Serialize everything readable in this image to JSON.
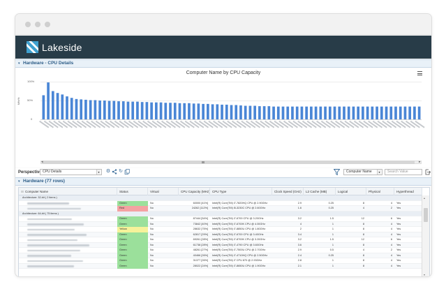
{
  "app": {
    "brand": "Lakeside",
    "colors": {
      "appbar": "#283c48",
      "section_header_text": "#2b5b86",
      "bar": "#4a86d6",
      "status_green": "#9be09b",
      "status_red": "#f4a2a2",
      "status_yellow": "#f6f29a"
    }
  },
  "cpu_section": {
    "title": "Hardware - CPU Details"
  },
  "chart_data": {
    "type": "bar",
    "title": "Computer Name by CPU Capacity",
    "ylabel": "MHz%",
    "yticks": [
      "100%",
      "50%",
      "0"
    ],
    "ylim": [
      0,
      110
    ],
    "categories_visible": false,
    "values": [
      64,
      98,
      75,
      70,
      66,
      61,
      57,
      54,
      53,
      52,
      51,
      51,
      50,
      50,
      49,
      49,
      48,
      48,
      47,
      47,
      47,
      46,
      46,
      45,
      45,
      45,
      44,
      44,
      44,
      43,
      43,
      43,
      42,
      42,
      41,
      41,
      40,
      40,
      39,
      39,
      38,
      38,
      37,
      36,
      36,
      36,
      35,
      35,
      35,
      34,
      34,
      34,
      34,
      34,
      34,
      34,
      34,
      34,
      34,
      34,
      34,
      34,
      34,
      34,
      34,
      34,
      34,
      34,
      34,
      34,
      34,
      34,
      34,
      34,
      34,
      34,
      34,
      34,
      34,
      34,
      34
    ]
  },
  "toolbar": {
    "perspective_label": "Perspective:",
    "perspective_value": "CPU Details",
    "icons": [
      "gear-icon",
      "share-icon",
      "refresh-icon",
      "copy-icon"
    ],
    "filter_icon": "filter-icon",
    "column_select_value": "Computer Name",
    "search_placeholder": "Search Value",
    "export_icon": "export-icon"
  },
  "hardware_section": {
    "title": "Hardware (77 rows)"
  },
  "table": {
    "columns": [
      "Computer Name",
      "Status",
      "Virtual",
      "CPU Capacity (MHz)",
      "CPU Type",
      "Clock Speed (GHz)",
      "L2 Cache (MB)",
      "Logical",
      "Physical",
      "Hyperthread"
    ],
    "groups": [
      {
        "label": "Architecture: 32-bit ( 2 items )",
        "rows": [
          {
            "status": "Green",
            "virtual": "No",
            "capacity": "60000 [41%]",
            "cpu": "Intel(R) Core(TM) i7-7820HQ CPU @ 2.90GHz",
            "clock": "2.9",
            "l2": "0.25",
            "logical": "8",
            "physical": "4",
            "ht": "Yes"
          },
          {
            "status": "Red",
            "virtual": "No",
            "capacity": "24262 [112%]",
            "cpu": "Intel(R) Core(TM) i5-3230C CPU @ 2.60GHz",
            "clock": "1.6",
            "l2": "0.25",
            "logical": "4",
            "physical": "2",
            "ht": "Yes"
          }
        ]
      },
      {
        "label": "Architecture: 64-bit ( 75 items )",
        "rows": [
          {
            "status": "Green",
            "virtual": "No",
            "capacity": "87444 [54%]",
            "cpu": "Intel(R) Core(TM) i7-6700 CPU @ 3.20GHz",
            "clock": "3.2",
            "l2": "1.5",
            "logical": "12",
            "physical": "6",
            "ht": "Yes"
          },
          {
            "status": "Green",
            "virtual": "No",
            "capacity": "73842 [40%]",
            "cpu": "Intel(R) Core(TM) i7-6700K CPU @ 4.00GHz",
            "clock": "4",
            "l2": "1",
            "logical": "8",
            "physical": "4",
            "ht": "Yes"
          },
          {
            "status": "Yellow",
            "virtual": "No",
            "capacity": "28632 [75%]",
            "cpu": "Intel(R) Core(TM) i7-8850U CPU @ 1.80GHz",
            "clock": "2",
            "l2": "1",
            "logical": "8",
            "physical": "4",
            "ht": "Yes"
          },
          {
            "status": "Green",
            "virtual": "No",
            "capacity": "62817 [29%]",
            "cpu": "Intel(R) Core(TM) i7-6700 CPU @ 3.40GHz",
            "clock": "3.4",
            "l2": "1",
            "logical": "8",
            "physical": "4",
            "ht": "Yes"
          },
          {
            "status": "Green",
            "virtual": "No",
            "capacity": "69261 [28%]",
            "cpu": "Intel(R) Core(TM) i7-8700K CPU @ 3.20GHz",
            "clock": "3.2",
            "l2": "1.5",
            "logical": "12",
            "physical": "6",
            "ht": "Yes"
          },
          {
            "status": "Green",
            "virtual": "No",
            "capacity": "61738 [28%]",
            "cpu": "Intel(R) Core(TM) i7-4790 CPU @ 3.60GHz",
            "clock": "3.6",
            "l2": "1",
            "logical": "8",
            "physical": "4",
            "ht": "Yes"
          },
          {
            "status": "Green",
            "virtual": "No",
            "capacity": "48261 [27%]",
            "cpu": "Intel(R) Core(TM) i7-7500U CPU @ 2.70GHz",
            "clock": "2.9",
            "l2": "0.5",
            "logical": "4",
            "physical": "2",
            "ht": "Yes"
          },
          {
            "status": "Green",
            "virtual": "No",
            "capacity": "40466 [26%]",
            "cpu": "Intel(R) Core(TM) i7-4710HQ CPU @ 2.50GHz",
            "clock": "2.4",
            "l2": "0.25",
            "logical": "8",
            "physical": "4",
            "ht": "Yes"
          },
          {
            "status": "Green",
            "virtual": "No",
            "capacity": "31377 [26%]",
            "cpu": "Intel(R) Core(TM) i7 CPU 870 @ 2.93GHz",
            "clock": "2.8",
            "l2": "1",
            "logical": "8",
            "physical": "4",
            "ht": "Yes"
          },
          {
            "status": "Green",
            "virtual": "No",
            "capacity": "28022 [24%]",
            "cpu": "Intel(R) Core(TM) i7-8650U CPU @ 1.90GHz",
            "clock": "2.1",
            "l2": "1",
            "logical": "8",
            "physical": "4",
            "ht": "Yes"
          }
        ]
      }
    ]
  }
}
